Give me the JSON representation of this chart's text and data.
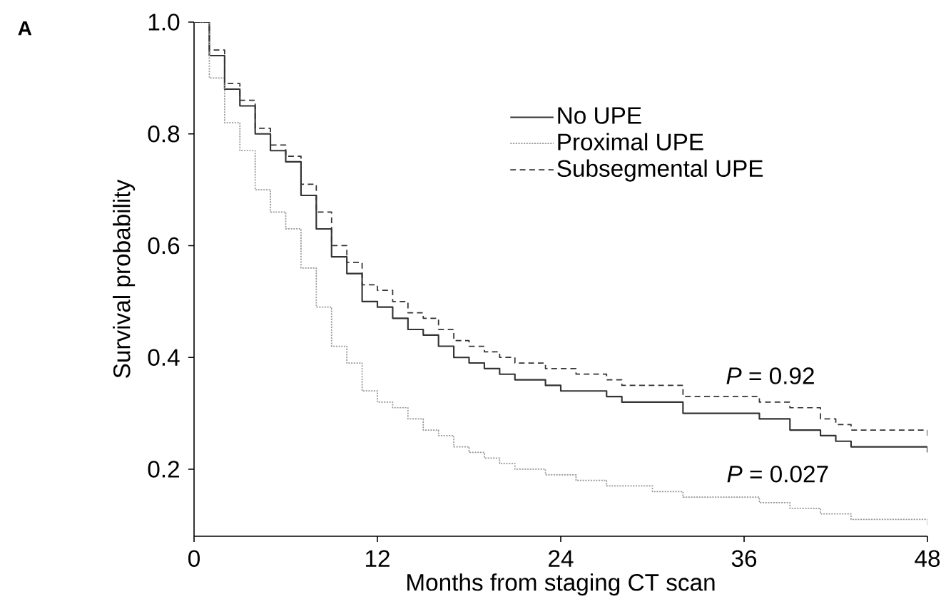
{
  "chart_data": {
    "type": "step",
    "xlabel": "Months from staging CT scan",
    "ylabel": "Survival probability",
    "annotations": [
      "A",
      "*P* = 0.92",
      "*P* = 0.027"
    ],
    "xlim": [
      0,
      48
    ],
    "xticks": [
      0,
      12,
      24,
      36,
      48
    ],
    "ylim": [
      0.08,
      1.0
    ],
    "yticks": [
      0.2,
      0.4,
      0.6,
      0.8,
      {
        "value": 1.0,
        "label": "1.0"
      }
    ],
    "legend": "top right",
    "grid": false,
    "marker": "none",
    "series": [
      {
        "name": "No UPE",
        "color": "#333333",
        "line_style": "solid",
        "x": [
          0,
          1,
          2,
          3,
          4,
          5,
          6,
          7,
          8,
          9,
          10,
          11,
          12,
          13,
          14,
          15,
          16,
          17,
          18,
          19,
          20,
          21,
          22,
          23,
          24,
          25,
          27,
          28,
          30,
          32,
          33,
          37,
          39,
          41,
          42,
          43,
          48
        ],
        "values": [
          1.0,
          0.94,
          0.88,
          0.85,
          0.8,
          0.77,
          0.75,
          0.69,
          0.63,
          0.58,
          0.55,
          0.5,
          0.49,
          0.47,
          0.45,
          0.44,
          0.42,
          0.4,
          0.39,
          0.38,
          0.37,
          0.36,
          0.36,
          0.35,
          0.34,
          0.34,
          0.33,
          0.32,
          0.32,
          0.3,
          0.3,
          0.29,
          0.27,
          0.26,
          0.25,
          0.24,
          0.23
        ]
      },
      {
        "name": "Proximal UPE",
        "color": "#999999",
        "line_style": "dotted",
        "x": [
          0,
          1,
          2,
          3,
          4,
          5,
          6,
          7,
          8,
          9,
          10,
          11,
          12,
          13,
          14,
          15,
          16,
          17,
          18,
          19,
          20,
          21,
          23,
          24,
          25,
          27,
          28,
          30,
          32,
          33,
          37,
          39,
          41,
          42,
          43,
          48
        ],
        "values": [
          1.0,
          0.9,
          0.82,
          0.77,
          0.7,
          0.66,
          0.63,
          0.56,
          0.49,
          0.42,
          0.39,
          0.34,
          0.32,
          0.31,
          0.29,
          0.27,
          0.26,
          0.24,
          0.23,
          0.22,
          0.21,
          0.2,
          0.19,
          0.19,
          0.18,
          0.17,
          0.17,
          0.16,
          0.15,
          0.15,
          0.14,
          0.13,
          0.12,
          0.12,
          0.11,
          0.1
        ]
      },
      {
        "name": "Subsegmental UPE",
        "color": "#333333",
        "line_style": "dashed",
        "x": [
          0,
          1,
          2,
          3,
          4,
          5,
          6,
          7,
          8,
          9,
          10,
          11,
          12,
          13,
          14,
          15,
          16,
          17,
          18,
          19,
          20,
          21,
          23,
          25,
          27,
          28,
          32,
          33,
          37,
          39,
          41,
          42,
          43,
          48
        ],
        "values": [
          1.0,
          0.95,
          0.89,
          0.86,
          0.81,
          0.78,
          0.76,
          0.71,
          0.66,
          0.6,
          0.57,
          0.53,
          0.52,
          0.5,
          0.48,
          0.47,
          0.45,
          0.43,
          0.42,
          0.41,
          0.4,
          0.39,
          0.38,
          0.37,
          0.36,
          0.35,
          0.33,
          0.33,
          0.32,
          0.31,
          0.29,
          0.28,
          0.27,
          0.26
        ]
      }
    ]
  }
}
